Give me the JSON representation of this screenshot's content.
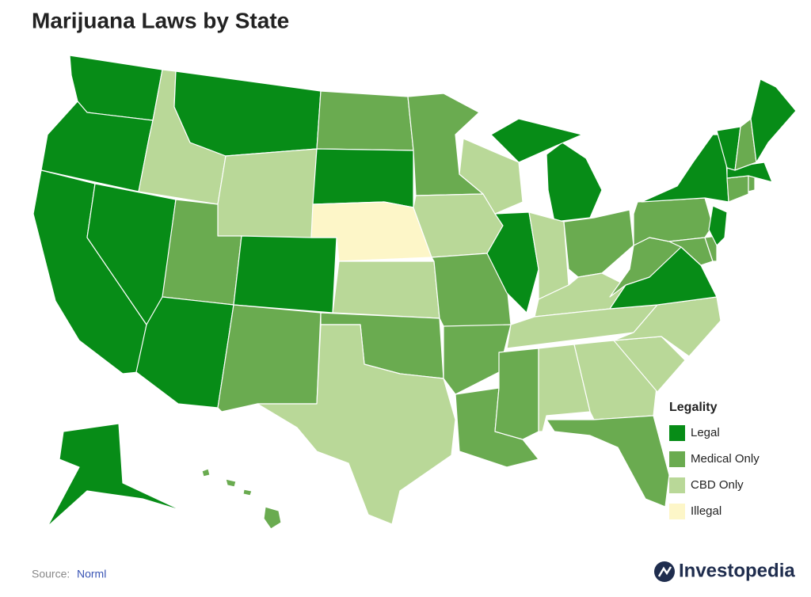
{
  "title": "Marijuana Laws by State",
  "legend": {
    "title": "Legality",
    "items": [
      {
        "label": "Legal",
        "color": "#078c17"
      },
      {
        "label": "Medical Only",
        "color": "#6aab50"
      },
      {
        "label": "CBD Only",
        "color": "#b9d898"
      },
      {
        "label": "Illegal",
        "color": "#fdf6c8"
      }
    ]
  },
  "source": {
    "label": "Source:",
    "name": "Norml"
  },
  "logo": "Investopedia"
}
